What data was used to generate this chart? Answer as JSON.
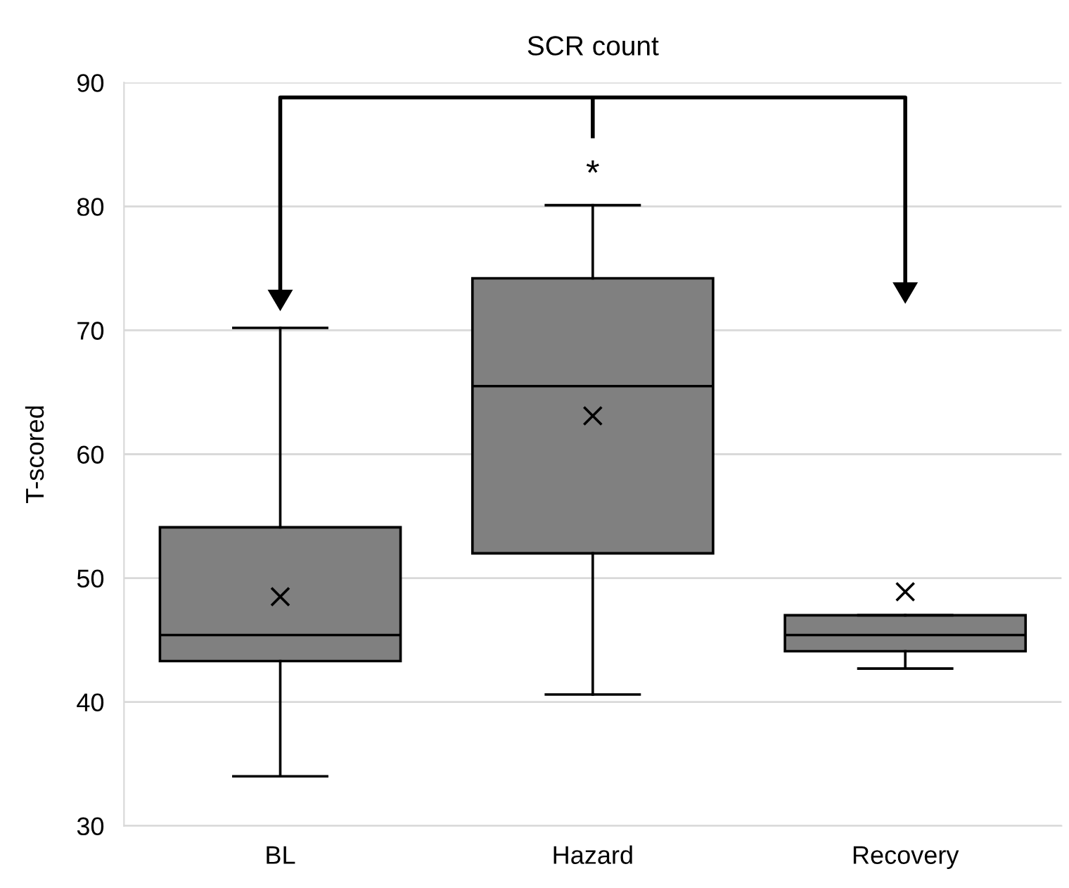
{
  "chart_data": {
    "type": "box",
    "title": "SCR count",
    "ylabel": "T-scored",
    "categories": [
      "BL",
      "Hazard",
      "Recovery"
    ],
    "boxes": [
      {
        "low": 34.0,
        "q1": 43.3,
        "median": 45.4,
        "q3": 54.1,
        "high": 70.2,
        "mean": 48.5
      },
      {
        "low": 40.6,
        "q1": 52.0,
        "median": 65.5,
        "q3": 74.2,
        "high": 80.1,
        "mean": 63.1
      },
      {
        "low": 42.7,
        "q1": 44.1,
        "median": 45.4,
        "q3": 47.0,
        "high": 47.0,
        "mean": 48.9
      }
    ],
    "color": "#808080",
    "ylim": [
      30,
      90
    ],
    "yticks": [
      30,
      40,
      50,
      60,
      70,
      80,
      90
    ],
    "grid": "y",
    "annotations": [
      "*"
    ]
  }
}
